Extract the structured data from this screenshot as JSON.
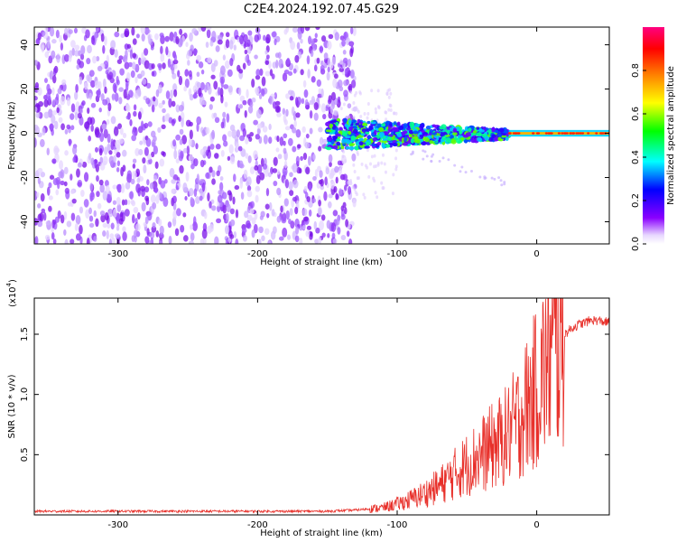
{
  "title": "C2E4.2024.192.07.45.G29",
  "chart_data": [
    {
      "type": "heatmap",
      "xlabel": "Height of straight line (km)",
      "ylabel": "Frequency (Hz)",
      "xlim": [
        -360,
        52
      ],
      "ylim": [
        -50,
        48
      ],
      "xticks": [
        -300,
        -200,
        -100,
        0
      ],
      "yticks": [
        -40,
        -20,
        0,
        20,
        40
      ],
      "colorbar": {
        "label": "Normalized spectral amplitude",
        "range": [
          0.0,
          1.0
        ],
        "ticks": [
          0.0,
          0.2,
          0.4,
          0.6,
          0.8
        ],
        "tick_labels": [
          "0.0",
          "0.2",
          "0.4",
          "0.6",
          "0.8"
        ],
        "colormap": "rainbow (white-violet-blue-cyan-green-yellow-orange-red-magenta)"
      },
      "description_regions": [
        {
          "x_range": [
            -360,
            -130
          ],
          "frequency_range": [
            -50,
            48
          ],
          "amplitude": "~0.05-0.15 (noise, violet)"
        },
        {
          "x_range": [
            -150,
            -20
          ],
          "frequency_range": [
            -8,
            8
          ],
          "amplitude": "~0.2-0.6 (blue/cyan/green band)"
        },
        {
          "x_range": [
            -20,
            52
          ],
          "frequency_range": [
            -2,
            2
          ],
          "amplitude": "~0.6-0.9 (narrow band near 0 Hz)"
        }
      ]
    },
    {
      "type": "line",
      "xlabel": "Height of straight line (km)",
      "ylabel": "SNR (10 * v/v)",
      "y_scale_label": "(x10",
      "y_scale_exp": "4",
      "xlim": [
        -360,
        52
      ],
      "ylim": [
        0.0,
        1.8
      ],
      "xticks": [
        -300,
        -200,
        -100,
        0
      ],
      "yticks": [
        0.5,
        1.0,
        1.5
      ],
      "ytick_labels": [
        "0.5",
        "1.0",
        "1.5"
      ],
      "series": [
        {
          "color": "#e8302a",
          "x": [
            -360,
            -300,
            -200,
            -150,
            -130,
            -110,
            -100,
            -90,
            -80,
            -70,
            -60,
            -50,
            -40,
            -30,
            -25,
            -20,
            -15,
            -10,
            -5,
            0,
            5,
            10,
            15,
            20,
            25,
            30,
            35,
            40,
            45,
            50
          ],
          "y": [
            0.03,
            0.03,
            0.03,
            0.03,
            0.04,
            0.06,
            0.09,
            0.13,
            0.18,
            0.24,
            0.33,
            0.42,
            0.5,
            0.58,
            0.62,
            0.68,
            0.75,
            0.85,
            0.95,
            1.05,
            1.2,
            1.32,
            1.42,
            1.5,
            1.55,
            1.58,
            1.6,
            1.62,
            1.61,
            1.6
          ]
        }
      ]
    }
  ]
}
